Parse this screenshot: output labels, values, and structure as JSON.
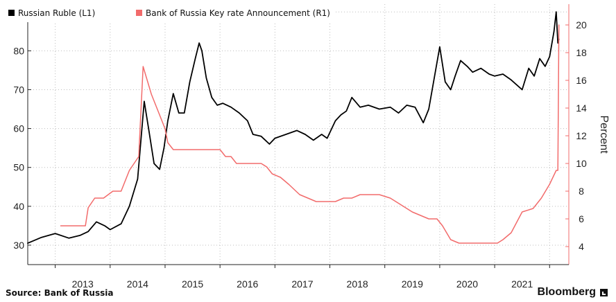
{
  "chart_data": {
    "type": "line",
    "title": "",
    "xlabel": "",
    "ylabel_left": "",
    "ylabel_right": "Percent",
    "ylim_left": [
      25,
      92
    ],
    "ylim_right": [
      2.7,
      21.5
    ],
    "yticks_left": [
      "30",
      "40",
      "50",
      "60",
      "70",
      "80",
      "90"
    ],
    "yticks_right": [
      "4",
      "6",
      "8",
      "10",
      "12",
      "14",
      "16",
      "18",
      "20"
    ],
    "xticks": [
      "2013",
      "2014",
      "2015",
      "2016",
      "2017",
      "2018",
      "2019",
      "2020",
      "2021"
    ],
    "grid": true,
    "legend_placement": "top-left",
    "series": [
      {
        "name": "Russian Ruble (L1)",
        "axis": "left",
        "color": "#000000",
        "x": [
          2012.5,
          2012.75,
          2013.0,
          2013.25,
          2013.45,
          2013.6,
          2013.75,
          2013.9,
          2014.0,
          2014.2,
          2014.35,
          2014.5,
          2014.62,
          2014.7,
          2014.8,
          2014.9,
          2014.98,
          2015.05,
          2015.15,
          2015.25,
          2015.35,
          2015.45,
          2015.55,
          2015.62,
          2015.67,
          2015.75,
          2015.85,
          2015.95,
          2016.05,
          2016.2,
          2016.35,
          2016.5,
          2016.6,
          2016.75,
          2016.9,
          2017.0,
          2017.2,
          2017.4,
          2017.55,
          2017.7,
          2017.85,
          2017.95,
          2018.1,
          2018.2,
          2018.3,
          2018.4,
          2018.55,
          2018.7,
          2018.9,
          2019.1,
          2019.25,
          2019.4,
          2019.55,
          2019.7,
          2019.8,
          2019.9,
          2020.0,
          2020.1,
          2020.2,
          2020.28,
          2020.38,
          2020.5,
          2020.6,
          2020.75,
          2020.9,
          2021.0,
          2021.15,
          2021.3,
          2021.5,
          2021.62,
          2021.72,
          2021.82,
          2021.92,
          2022.0,
          2022.08,
          2022.12,
          2022.15,
          2022.17
        ],
        "y": [
          30.5,
          32.0,
          33.0,
          31.8,
          32.5,
          33.5,
          36.0,
          35.0,
          34.0,
          35.5,
          40.0,
          47.0,
          67.0,
          60.0,
          51.0,
          49.5,
          55.0,
          62.0,
          69.0,
          64.0,
          64.0,
          72.0,
          78.0,
          82.0,
          80.0,
          73.0,
          68.0,
          66.0,
          66.5,
          65.5,
          64.0,
          62.0,
          58.5,
          58.0,
          56.0,
          57.5,
          58.5,
          59.5,
          58.5,
          57.0,
          58.5,
          57.5,
          62.0,
          63.5,
          64.5,
          68.0,
          65.5,
          66.0,
          65.0,
          65.5,
          64.0,
          66.0,
          65.5,
          61.5,
          65.0,
          73.0,
          81.0,
          72.0,
          70.0,
          73.5,
          77.5,
          76.0,
          74.5,
          75.5,
          74.0,
          73.5,
          74.0,
          72.5,
          70.0,
          75.5,
          73.5,
          78.0,
          76.0,
          78.5,
          85.0,
          90.0,
          82.0,
          83.0
        ]
      },
      {
        "name": "Bank of Russia Key rate Announcement (R1)",
        "axis": "right",
        "color": "#f26b6b",
        "x": [
          2013.1,
          2013.25,
          2013.45,
          2013.55,
          2013.6,
          2013.72,
          2013.88,
          2014.05,
          2014.2,
          2014.35,
          2014.52,
          2014.6,
          2014.75,
          2014.9,
          2015.0,
          2015.05,
          2015.15,
          2015.3,
          2015.5,
          2015.7,
          2015.9,
          2016.0,
          2016.1,
          2016.2,
          2016.3,
          2016.45,
          2016.6,
          2016.75,
          2016.85,
          2016.95,
          2017.1,
          2017.25,
          2017.45,
          2017.6,
          2017.75,
          2017.85,
          2017.95,
          2018.1,
          2018.25,
          2018.4,
          2018.55,
          2018.7,
          2018.9,
          2019.1,
          2019.3,
          2019.5,
          2019.65,
          2019.8,
          2019.95,
          2020.05,
          2020.2,
          2020.35,
          2020.55,
          2020.7,
          2020.9,
          2021.05,
          2021.15,
          2021.3,
          2021.5,
          2021.7,
          2021.85,
          2022.0,
          2022.12,
          2022.15,
          2022.17
        ],
        "y": [
          5.5,
          5.5,
          5.5,
          5.5,
          6.8,
          7.5,
          7.5,
          8.0,
          8.0,
          9.5,
          10.5,
          17.0,
          15.0,
          13.5,
          12.5,
          11.5,
          11.0,
          11.0,
          11.0,
          11.0,
          11.0,
          11.0,
          10.5,
          10.5,
          10.0,
          10.0,
          10.0,
          10.0,
          9.75,
          9.25,
          9.0,
          8.5,
          7.75,
          7.5,
          7.25,
          7.25,
          7.25,
          7.25,
          7.5,
          7.5,
          7.75,
          7.75,
          7.75,
          7.5,
          7.0,
          6.5,
          6.25,
          6.0,
          6.0,
          5.5,
          4.5,
          4.25,
          4.25,
          4.25,
          4.25,
          4.25,
          4.5,
          5.0,
          6.5,
          6.75,
          7.5,
          8.5,
          9.5,
          9.5,
          20.0
        ]
      }
    ]
  },
  "footer": {
    "source": "Source: Bank of Russia",
    "brand": "Bloomberg"
  }
}
